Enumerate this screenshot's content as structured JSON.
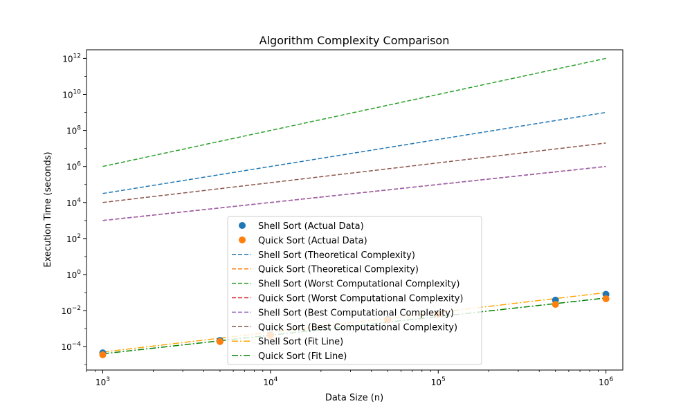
{
  "chart_data": {
    "type": "scatter",
    "title": "Algorithm Complexity Comparison",
    "xlabel": "Data Size (n)",
    "ylabel": "Execution Time (seconds)",
    "xscale": "log",
    "yscale": "log",
    "xlim": [
      800,
      1260000
    ],
    "ylim": [
      5e-06,
      3000000000000
    ],
    "x_ticks": [
      {
        "value": 1000,
        "base": "10",
        "exp": "3"
      },
      {
        "value": 10000,
        "base": "10",
        "exp": "4"
      },
      {
        "value": 100000,
        "base": "10",
        "exp": "5"
      },
      {
        "value": 1000000,
        "base": "10",
        "exp": "6"
      }
    ],
    "y_ticks": [
      {
        "value": 0.0001,
        "base": "10",
        "exp": "−4"
      },
      {
        "value": 0.01,
        "base": "10",
        "exp": "−2"
      },
      {
        "value": 1,
        "base": "10",
        "exp": "0"
      },
      {
        "value": 100,
        "base": "10",
        "exp": "2"
      },
      {
        "value": 10000,
        "base": "10",
        "exp": "4"
      },
      {
        "value": 1000000,
        "base": "10",
        "exp": "6"
      },
      {
        "value": 100000000,
        "base": "10",
        "exp": "8"
      },
      {
        "value": 10000000000,
        "base": "10",
        "exp": "10"
      },
      {
        "value": 1000000000000,
        "base": "10",
        "exp": "12"
      }
    ],
    "grid": false,
    "legend_position": "lower-center",
    "series": [
      {
        "name": "Shell Sort (Actual Data)",
        "kind": "scatter",
        "color": "#1f77b4",
        "x": [
          1000,
          5000,
          10000,
          50000,
          100000,
          500000,
          1000000
        ],
        "y": [
          4.5e-05,
          0.00022,
          0.00045,
          0.0033,
          0.0072,
          0.038,
          0.08
        ]
      },
      {
        "name": "Quick Sort (Actual Data)",
        "kind": "scatter",
        "color": "#ff7f0e",
        "x": [
          1000,
          5000,
          10000,
          50000,
          100000,
          500000,
          1000000
        ],
        "y": [
          3.5e-05,
          0.00019,
          0.00042,
          0.003,
          0.0062,
          0.022,
          0.045
        ]
      },
      {
        "name": "Shell Sort (Theoretical Complexity)",
        "kind": "line",
        "dash": "dashed",
        "color": "#1f77b4",
        "x": [
          1000,
          1000000
        ],
        "y": [
          31600,
          1000000000
        ]
      },
      {
        "name": "Quick Sort (Theoretical Complexity)",
        "kind": "line",
        "dash": "dashed",
        "color": "#ff7f0e",
        "x": [
          1000,
          1000000
        ],
        "y": [
          1000,
          1000000
        ]
      },
      {
        "name": "Shell Sort (Worst Computational Complexity)",
        "kind": "line",
        "dash": "dashed",
        "color": "#2ca02c",
        "x": [
          1000,
          1000000
        ],
        "y": [
          1000000,
          1000000000000
        ]
      },
      {
        "name": "Quick Sort (Worst Computational Complexity)",
        "kind": "line",
        "dash": "dashed",
        "color": "#d62728",
        "x": [
          1000,
          1000000
        ],
        "y": [
          1000,
          1000000
        ]
      },
      {
        "name": "Shell Sort (Best Computational Complexity)",
        "kind": "line",
        "dash": "dashed",
        "color": "#9467bd",
        "x": [
          1000,
          1000000
        ],
        "y": [
          1000,
          1000000
        ]
      },
      {
        "name": "Quick Sort (Best Computational Complexity)",
        "kind": "line",
        "dash": "dashed",
        "color": "#8c564b",
        "x": [
          1000,
          1000000
        ],
        "y": [
          10000,
          20000000
        ]
      },
      {
        "name": "Shell Sort (Fit Line)",
        "kind": "line",
        "dash": "dashdot",
        "color": "#ffa500",
        "x": [
          1000,
          1000000
        ],
        "y": [
          5e-05,
          0.1
        ]
      },
      {
        "name": "Quick Sort (Fit Line)",
        "kind": "line",
        "dash": "dashdot",
        "color": "#008000",
        "x": [
          1000,
          1000000
        ],
        "y": [
          4e-05,
          0.05
        ]
      }
    ]
  }
}
